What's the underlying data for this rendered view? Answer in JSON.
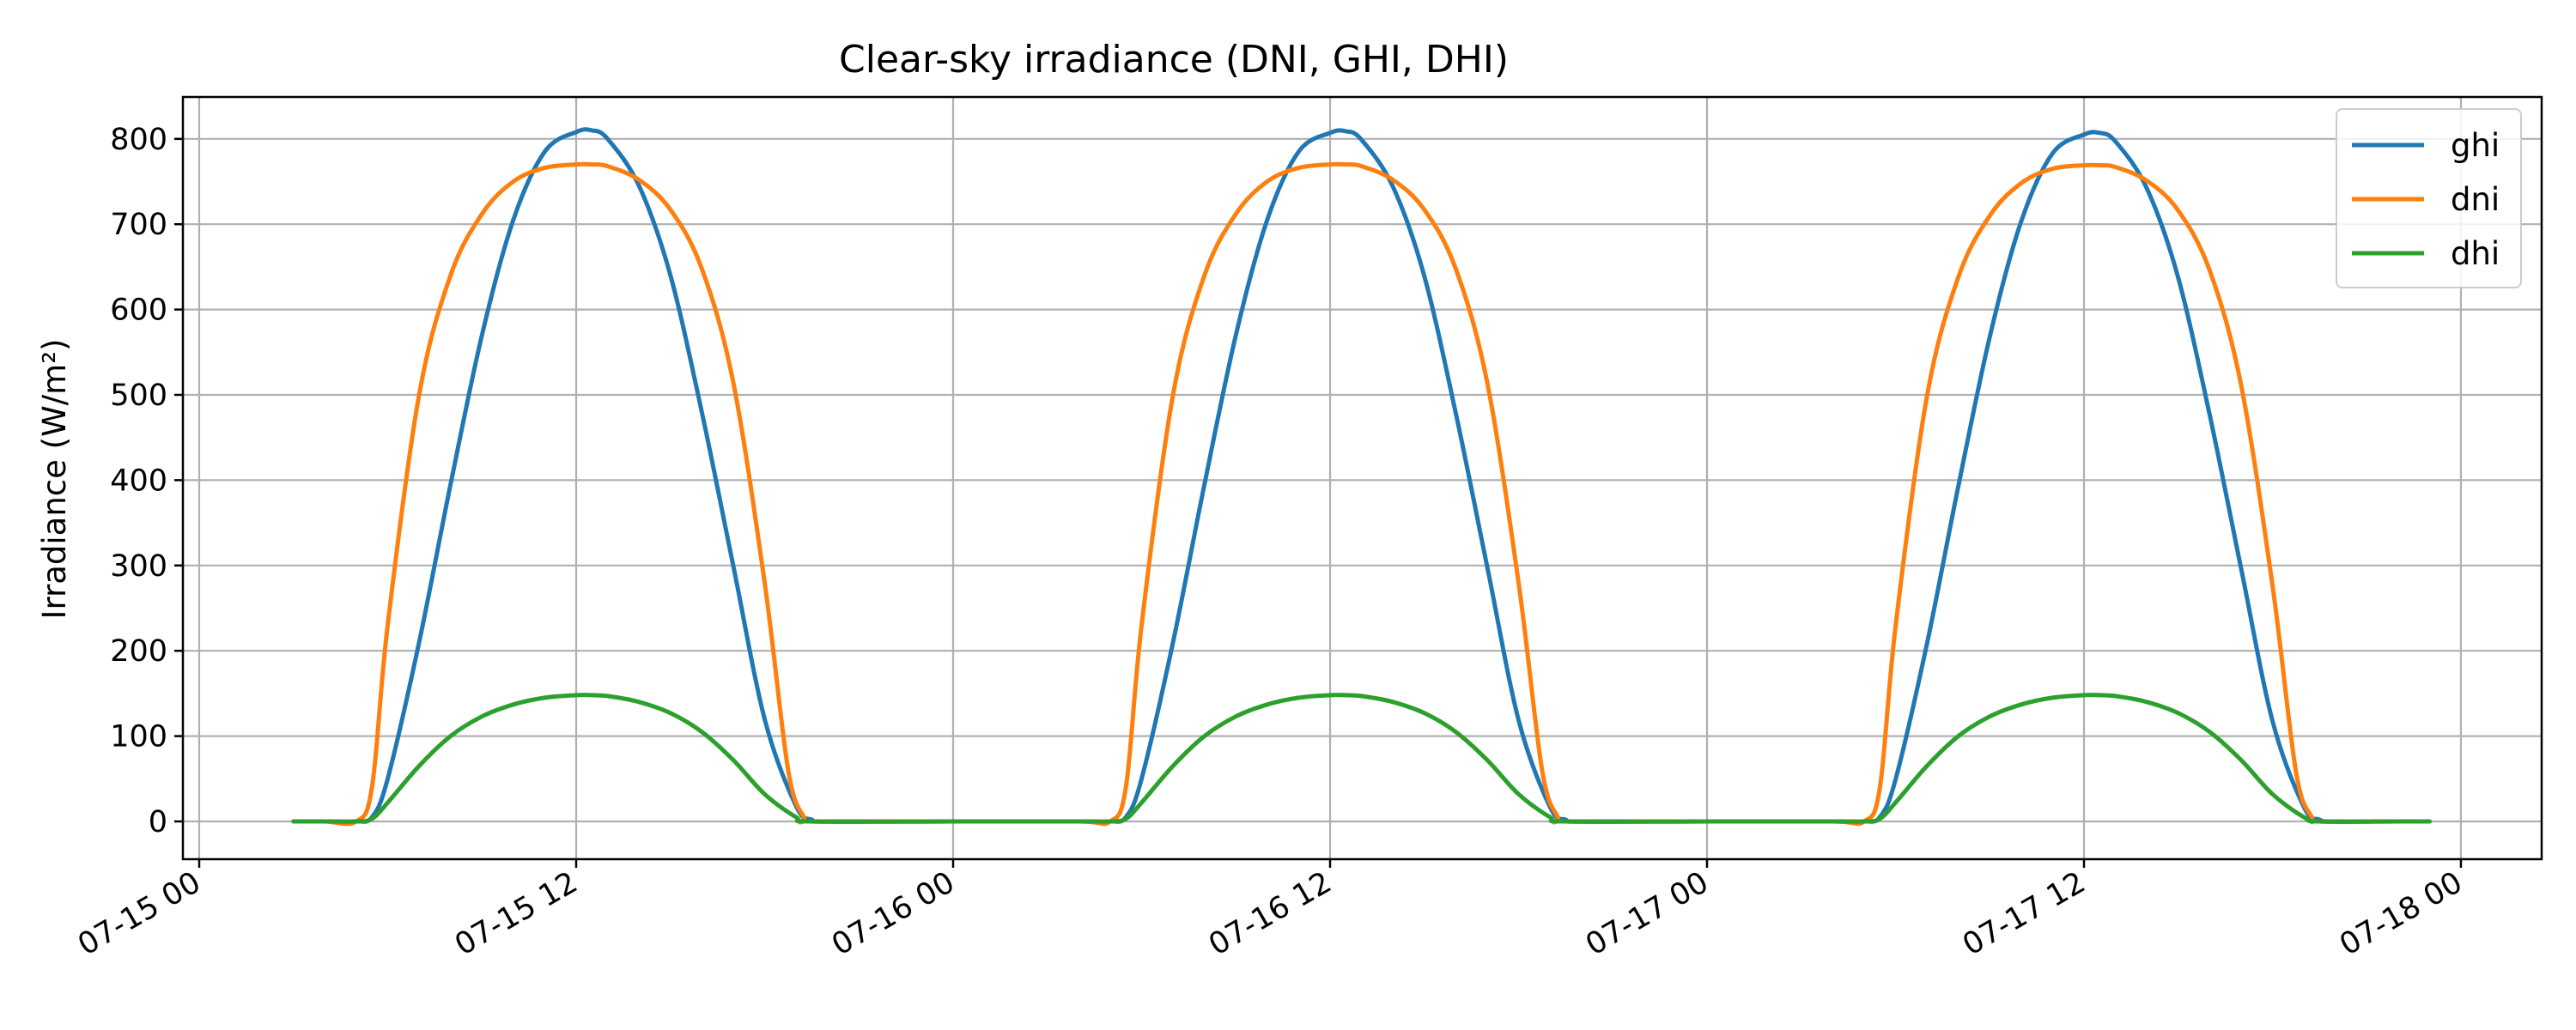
{
  "chart_data": {
    "type": "line",
    "title": "Clear-sky irradiance (DNI, GHI, DHI)",
    "xlabel": "",
    "ylabel": "Irradiance (W/m²)",
    "grid": true,
    "legend_position": "top-right",
    "x_range": [
      "2025-07-15 00:00",
      "2025-07-18 00:00"
    ],
    "ylim": [
      -40,
      850
    ],
    "x_ticks": [
      {
        "x": "2025-07-15 00:00",
        "label": "07-15 00"
      },
      {
        "x": "2025-07-15 12:00",
        "label": "07-15 12"
      },
      {
        "x": "2025-07-16 00:00",
        "label": "07-16 00"
      },
      {
        "x": "2025-07-16 12:00",
        "label": "07-16 12"
      },
      {
        "x": "2025-07-17 00:00",
        "label": "07-17 00"
      },
      {
        "x": "2025-07-17 12:00",
        "label": "07-17 12"
      },
      {
        "x": "2025-07-18 00:00",
        "label": "07-18 00"
      }
    ],
    "y_ticks": [
      0,
      100,
      200,
      300,
      400,
      500,
      600,
      700,
      800
    ],
    "series": [
      {
        "name": "ghi",
        "color": "#1f77b4",
        "points": [
          [
            "2025-07-15 03:00",
            0
          ],
          [
            "2025-07-15 04:00",
            0
          ],
          [
            "2025-07-15 05:00",
            0
          ],
          [
            "2025-07-15 05:30",
            5
          ],
          [
            "2025-07-15 06:00",
            50
          ],
          [
            "2025-07-15 07:00",
            210
          ],
          [
            "2025-07-15 08:00",
            395
          ],
          [
            "2025-07-15 09:00",
            570
          ],
          [
            "2025-07-15 10:00",
            705
          ],
          [
            "2025-07-15 11:00",
            785
          ],
          [
            "2025-07-15 12:00",
            808
          ],
          [
            "2025-07-15 12:30",
            810
          ],
          [
            "2025-07-15 13:00",
            800
          ],
          [
            "2025-07-15 14:00",
            745
          ],
          [
            "2025-07-15 15:00",
            640
          ],
          [
            "2025-07-15 16:00",
            480
          ],
          [
            "2025-07-15 17:00",
            300
          ],
          [
            "2025-07-15 18:00",
            120
          ],
          [
            "2025-07-15 19:00",
            18
          ],
          [
            "2025-07-15 19:30",
            2
          ],
          [
            "2025-07-15 20:00",
            0
          ],
          [
            "2025-07-16 00:00",
            0
          ],
          [
            "2025-07-16 04:00",
            0
          ],
          [
            "2025-07-16 05:00",
            0
          ],
          [
            "2025-07-16 05:30",
            5
          ],
          [
            "2025-07-16 06:00",
            50
          ],
          [
            "2025-07-16 07:00",
            210
          ],
          [
            "2025-07-16 08:00",
            395
          ],
          [
            "2025-07-16 09:00",
            570
          ],
          [
            "2025-07-16 10:00",
            705
          ],
          [
            "2025-07-16 11:00",
            785
          ],
          [
            "2025-07-16 12:00",
            807
          ],
          [
            "2025-07-16 12:30",
            809
          ],
          [
            "2025-07-16 13:00",
            799
          ],
          [
            "2025-07-16 14:00",
            744
          ],
          [
            "2025-07-16 15:00",
            639
          ],
          [
            "2025-07-16 16:00",
            479
          ],
          [
            "2025-07-16 17:00",
            299
          ],
          [
            "2025-07-16 18:00",
            119
          ],
          [
            "2025-07-16 19:00",
            17
          ],
          [
            "2025-07-16 19:30",
            2
          ],
          [
            "2025-07-16 20:00",
            0
          ],
          [
            "2025-07-17 00:00",
            0
          ],
          [
            "2025-07-17 04:00",
            0
          ],
          [
            "2025-07-17 05:00",
            0
          ],
          [
            "2025-07-17 05:30",
            5
          ],
          [
            "2025-07-17 06:00",
            49
          ],
          [
            "2025-07-17 07:00",
            208
          ],
          [
            "2025-07-17 08:00",
            393
          ],
          [
            "2025-07-17 09:00",
            568
          ],
          [
            "2025-07-17 10:00",
            703
          ],
          [
            "2025-07-17 11:00",
            783
          ],
          [
            "2025-07-17 12:00",
            805
          ],
          [
            "2025-07-17 12:30",
            807
          ],
          [
            "2025-07-17 13:00",
            797
          ],
          [
            "2025-07-17 14:00",
            742
          ],
          [
            "2025-07-17 15:00",
            637
          ],
          [
            "2025-07-17 16:00",
            477
          ],
          [
            "2025-07-17 17:00",
            297
          ],
          [
            "2025-07-17 18:00",
            118
          ],
          [
            "2025-07-17 19:00",
            17
          ],
          [
            "2025-07-17 19:30",
            2
          ],
          [
            "2025-07-17 20:00",
            0
          ],
          [
            "2025-07-17 22:00",
            0
          ],
          [
            "2025-07-17 23:00",
            0
          ]
        ]
      },
      {
        "name": "dni",
        "color": "#ff7f0e",
        "points": [
          [
            "2025-07-15 03:00",
            0
          ],
          [
            "2025-07-15 04:00",
            0
          ],
          [
            "2025-07-15 05:00",
            0
          ],
          [
            "2025-07-15 05:30",
            40
          ],
          [
            "2025-07-15 06:00",
            230
          ],
          [
            "2025-07-15 07:00",
            500
          ],
          [
            "2025-07-15 08:00",
            640
          ],
          [
            "2025-07-15 09:00",
            712
          ],
          [
            "2025-07-15 10:00",
            750
          ],
          [
            "2025-07-15 11:00",
            766
          ],
          [
            "2025-07-15 12:00",
            770
          ],
          [
            "2025-07-15 12:30",
            770
          ],
          [
            "2025-07-15 13:00",
            768
          ],
          [
            "2025-07-15 14:00",
            752
          ],
          [
            "2025-07-15 15:00",
            717
          ],
          [
            "2025-07-15 16:00",
            648
          ],
          [
            "2025-07-15 17:00",
            515
          ],
          [
            "2025-07-15 18:00",
            280
          ],
          [
            "2025-07-15 18:45",
            60
          ],
          [
            "2025-07-15 19:15",
            5
          ],
          [
            "2025-07-15 19:30",
            0
          ],
          [
            "2025-07-16 00:00",
            0
          ],
          [
            "2025-07-16 04:00",
            0
          ],
          [
            "2025-07-16 05:00",
            0
          ],
          [
            "2025-07-16 05:30",
            40
          ],
          [
            "2025-07-16 06:00",
            230
          ],
          [
            "2025-07-16 07:00",
            500
          ],
          [
            "2025-07-16 08:00",
            640
          ],
          [
            "2025-07-16 09:00",
            712
          ],
          [
            "2025-07-16 10:00",
            750
          ],
          [
            "2025-07-16 11:00",
            766
          ],
          [
            "2025-07-16 12:00",
            770
          ],
          [
            "2025-07-16 12:30",
            770
          ],
          [
            "2025-07-16 13:00",
            768
          ],
          [
            "2025-07-16 14:00",
            752
          ],
          [
            "2025-07-16 15:00",
            717
          ],
          [
            "2025-07-16 16:00",
            648
          ],
          [
            "2025-07-16 17:00",
            515
          ],
          [
            "2025-07-16 18:00",
            280
          ],
          [
            "2025-07-16 18:45",
            60
          ],
          [
            "2025-07-16 19:15",
            5
          ],
          [
            "2025-07-16 19:30",
            0
          ],
          [
            "2025-07-17 00:00",
            0
          ],
          [
            "2025-07-17 04:00",
            0
          ],
          [
            "2025-07-17 05:00",
            0
          ],
          [
            "2025-07-17 05:30",
            39
          ],
          [
            "2025-07-17 06:00",
            228
          ],
          [
            "2025-07-17 07:00",
            498
          ],
          [
            "2025-07-17 08:00",
            638
          ],
          [
            "2025-07-17 09:00",
            710
          ],
          [
            "2025-07-17 10:00",
            748
          ],
          [
            "2025-07-17 11:00",
            765
          ],
          [
            "2025-07-17 12:00",
            769
          ],
          [
            "2025-07-17 12:30",
            769
          ],
          [
            "2025-07-17 13:00",
            767
          ],
          [
            "2025-07-17 14:00",
            751
          ],
          [
            "2025-07-17 15:00",
            716
          ],
          [
            "2025-07-17 16:00",
            646
          ],
          [
            "2025-07-17 17:00",
            512
          ],
          [
            "2025-07-17 18:00",
            277
          ],
          [
            "2025-07-17 18:45",
            58
          ],
          [
            "2025-07-17 19:15",
            5
          ],
          [
            "2025-07-17 19:30",
            0
          ],
          [
            "2025-07-17 22:00",
            0
          ],
          [
            "2025-07-17 23:00",
            0
          ]
        ]
      },
      {
        "name": "dhi",
        "color": "#2ca02c",
        "points": [
          [
            "2025-07-15 03:00",
            0
          ],
          [
            "2025-07-15 04:00",
            0
          ],
          [
            "2025-07-15 05:00",
            0
          ],
          [
            "2025-07-15 05:30",
            3
          ],
          [
            "2025-07-15 06:00",
            22
          ],
          [
            "2025-07-15 07:00",
            65
          ],
          [
            "2025-07-15 08:00",
            100
          ],
          [
            "2025-07-15 09:00",
            123
          ],
          [
            "2025-07-15 10:00",
            137
          ],
          [
            "2025-07-15 11:00",
            145
          ],
          [
            "2025-07-15 12:00",
            148
          ],
          [
            "2025-07-15 12:30",
            148
          ],
          [
            "2025-07-15 13:00",
            147
          ],
          [
            "2025-07-15 14:00",
            140
          ],
          [
            "2025-07-15 15:00",
            127
          ],
          [
            "2025-07-15 16:00",
            105
          ],
          [
            "2025-07-15 17:00",
            72
          ],
          [
            "2025-07-15 18:00",
            32
          ],
          [
            "2025-07-15 19:00",
            5
          ],
          [
            "2025-07-15 19:30",
            0
          ],
          [
            "2025-07-16 00:00",
            0
          ],
          [
            "2025-07-16 04:00",
            0
          ],
          [
            "2025-07-16 05:00",
            0
          ],
          [
            "2025-07-16 05:30",
            3
          ],
          [
            "2025-07-16 06:00",
            22
          ],
          [
            "2025-07-16 07:00",
            65
          ],
          [
            "2025-07-16 08:00",
            100
          ],
          [
            "2025-07-16 09:00",
            123
          ],
          [
            "2025-07-16 10:00",
            137
          ],
          [
            "2025-07-16 11:00",
            145
          ],
          [
            "2025-07-16 12:00",
            148
          ],
          [
            "2025-07-16 12:30",
            148
          ],
          [
            "2025-07-16 13:00",
            147
          ],
          [
            "2025-07-16 14:00",
            140
          ],
          [
            "2025-07-16 15:00",
            127
          ],
          [
            "2025-07-16 16:00",
            105
          ],
          [
            "2025-07-16 17:00",
            72
          ],
          [
            "2025-07-16 18:00",
            32
          ],
          [
            "2025-07-16 19:00",
            5
          ],
          [
            "2025-07-16 19:30",
            0
          ],
          [
            "2025-07-17 00:00",
            0
          ],
          [
            "2025-07-17 04:00",
            0
          ],
          [
            "2025-07-17 05:00",
            0
          ],
          [
            "2025-07-17 05:30",
            3
          ],
          [
            "2025-07-17 06:00",
            22
          ],
          [
            "2025-07-17 07:00",
            65
          ],
          [
            "2025-07-17 08:00",
            100
          ],
          [
            "2025-07-17 09:00",
            123
          ],
          [
            "2025-07-17 10:00",
            137
          ],
          [
            "2025-07-17 11:00",
            145
          ],
          [
            "2025-07-17 12:00",
            148
          ],
          [
            "2025-07-17 12:30",
            148
          ],
          [
            "2025-07-17 13:00",
            147
          ],
          [
            "2025-07-17 14:00",
            140
          ],
          [
            "2025-07-17 15:00",
            127
          ],
          [
            "2025-07-17 16:00",
            105
          ],
          [
            "2025-07-17 17:00",
            72
          ],
          [
            "2025-07-17 18:00",
            32
          ],
          [
            "2025-07-17 19:00",
            5
          ],
          [
            "2025-07-17 19:30",
            0
          ],
          [
            "2025-07-17 22:00",
            0
          ],
          [
            "2025-07-17 23:00",
            0
          ]
        ]
      }
    ]
  }
}
